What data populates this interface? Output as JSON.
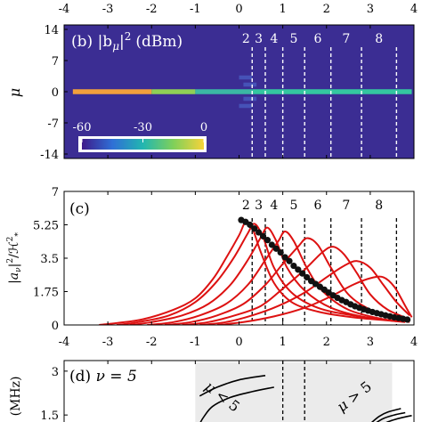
{
  "chart_data": [
    {
      "panel": "b",
      "type": "heatmap",
      "title": "(b) |b_μ|² (dBm)",
      "title_parts": {
        "tag": "(b)",
        "quantity": "|b",
        "sub": "μ",
        "sup": "2",
        "unit": "(dBm)"
      },
      "ylabel": "μ",
      "xlim": [
        -4,
        4
      ],
      "ylim": [
        -15,
        15
      ],
      "xticks": [
        "-4",
        "-3",
        "-2",
        "-1",
        "0",
        "1",
        "2",
        "3",
        "4"
      ],
      "yticks": [
        "14",
        "7",
        "0",
        "-7",
        "-14"
      ],
      "ytick_values": [
        14,
        7,
        0,
        -7,
        -14
      ],
      "background_color": "#3b2d93",
      "colorbar": {
        "ticks": [
          "-60",
          "-30",
          "0"
        ],
        "range_dBm": [
          -60,
          0
        ],
        "colors": [
          "#3e1b8a",
          "#2f6fd6",
          "#22b6b0",
          "#7fd05a",
          "#f7d33a"
        ]
      },
      "region_labels": [
        "2",
        "3",
        "4",
        "5",
        "6",
        "7",
        "8"
      ],
      "boundaries": [
        0.3,
        0.6,
        1.0,
        1.5,
        2.1,
        2.8,
        3.6
      ],
      "row_mu0": [
        {
          "x0": -3.8,
          "x1": -2.0,
          "color": "#f2a03c"
        },
        {
          "x0": -2.0,
          "x1": -1.0,
          "color": "#8fcf55"
        },
        {
          "x0": -1.0,
          "x1": 0.3,
          "color": "#3bb7a4"
        },
        {
          "x0": 0.3,
          "x1": 3.95,
          "color": "#34c7a0"
        }
      ]
    },
    {
      "panel": "c",
      "type": "line",
      "tag": "(c)",
      "ylabel": "|a_ν|²/ℋ²_*",
      "xlim": [
        -4,
        4
      ],
      "ylim": [
        0,
        7
      ],
      "xticks": [
        "-4",
        "-3",
        "-2",
        "-1",
        "0",
        "1",
        "2",
        "3",
        "4"
      ],
      "yticks": [
        "7",
        "5.25",
        "3.5",
        "1.75",
        "0"
      ],
      "ytick_values": [
        7,
        5.25,
        3.5,
        1.75,
        0
      ],
      "region_labels": [
        "2",
        "3",
        "4",
        "5",
        "6",
        "7",
        "8"
      ],
      "boundaries": [
        0.3,
        0.6,
        1.0,
        1.5,
        2.1,
        2.8,
        3.6
      ],
      "series_color": "#dd1111",
      "series": [
        {
          "values": [
            [
              -3.2,
              0.0
            ],
            [
              -2.8,
              0.1
            ],
            [
              -2.2,
              0.3
            ],
            [
              -1.5,
              0.8
            ],
            [
              -1.0,
              1.4
            ],
            [
              -0.6,
              2.4
            ],
            [
              -0.3,
              3.5
            ],
            [
              0.0,
              4.7
            ],
            [
              0.15,
              5.4
            ],
            [
              0.3,
              5.1
            ],
            [
              0.5,
              3.8
            ],
            [
              0.8,
              2.2
            ],
            [
              1.2,
              1.2
            ],
            [
              1.8,
              0.7
            ],
            [
              2.6,
              0.4
            ],
            [
              3.6,
              0.2
            ]
          ]
        },
        {
          "values": [
            [
              -2.8,
              0.0
            ],
            [
              -2.3,
              0.15
            ],
            [
              -1.6,
              0.5
            ],
            [
              -1.0,
              1.2
            ],
            [
              -0.5,
              2.3
            ],
            [
              -0.1,
              3.6
            ],
            [
              0.2,
              4.8
            ],
            [
              0.35,
              5.3
            ],
            [
              0.55,
              4.6
            ],
            [
              0.8,
              3.0
            ],
            [
              1.2,
              1.7
            ],
            [
              1.8,
              0.9
            ],
            [
              2.6,
              0.5
            ],
            [
              3.6,
              0.2
            ]
          ]
        },
        {
          "values": [
            [
              -2.5,
              0.0
            ],
            [
              -2.0,
              0.15
            ],
            [
              -1.3,
              0.5
            ],
            [
              -0.7,
              1.1
            ],
            [
              -0.2,
              2.1
            ],
            [
              0.2,
              3.4
            ],
            [
              0.5,
              4.6
            ],
            [
              0.65,
              5.1
            ],
            [
              0.85,
              4.4
            ],
            [
              1.1,
              3.0
            ],
            [
              1.5,
              1.8
            ],
            [
              2.1,
              0.9
            ],
            [
              2.9,
              0.4
            ],
            [
              3.7,
              0.2
            ]
          ]
        },
        {
          "values": [
            [
              -2.1,
              0.0
            ],
            [
              -1.5,
              0.15
            ],
            [
              -0.9,
              0.5
            ],
            [
              -0.3,
              1.1
            ],
            [
              0.2,
              2.1
            ],
            [
              0.6,
              3.4
            ],
            [
              0.9,
              4.4
            ],
            [
              1.05,
              4.9
            ],
            [
              1.25,
              4.4
            ],
            [
              1.55,
              3.0
            ],
            [
              1.9,
              1.8
            ],
            [
              2.5,
              0.8
            ],
            [
              3.3,
              0.3
            ],
            [
              3.8,
              0.15
            ]
          ]
        },
        {
          "values": [
            [
              -1.7,
              0.0
            ],
            [
              -1.1,
              0.15
            ],
            [
              -0.5,
              0.5
            ],
            [
              0.1,
              1.1
            ],
            [
              0.6,
              2.1
            ],
            [
              1.0,
              3.2
            ],
            [
              1.35,
              4.1
            ],
            [
              1.55,
              4.55
            ],
            [
              1.8,
              4.2
            ],
            [
              2.1,
              3.0
            ],
            [
              2.5,
              1.6
            ],
            [
              3.0,
              0.8
            ],
            [
              3.6,
              0.3
            ],
            [
              3.9,
              0.15
            ]
          ]
        },
        {
          "values": [
            [
              -1.3,
              0.0
            ],
            [
              -0.7,
              0.15
            ],
            [
              -0.1,
              0.5
            ],
            [
              0.5,
              1.0
            ],
            [
              1.0,
              1.9
            ],
            [
              1.5,
              2.9
            ],
            [
              1.9,
              3.8
            ],
            [
              2.15,
              4.1
            ],
            [
              2.4,
              3.7
            ],
            [
              2.7,
              2.7
            ],
            [
              3.0,
              1.6
            ],
            [
              3.4,
              0.8
            ],
            [
              3.9,
              0.3
            ]
          ]
        },
        {
          "values": [
            [
              -0.9,
              0.0
            ],
            [
              -0.3,
              0.15
            ],
            [
              0.3,
              0.5
            ],
            [
              0.9,
              1.0
            ],
            [
              1.5,
              1.7
            ],
            [
              2.0,
              2.5
            ],
            [
              2.4,
              3.1
            ],
            [
              2.7,
              3.35
            ],
            [
              3.0,
              3.0
            ],
            [
              3.3,
              2.1
            ],
            [
              3.6,
              1.2
            ],
            [
              3.9,
              0.5
            ]
          ]
        },
        {
          "values": [
            [
              -0.5,
              0.0
            ],
            [
              0.1,
              0.15
            ],
            [
              0.8,
              0.45
            ],
            [
              1.5,
              0.9
            ],
            [
              2.1,
              1.5
            ],
            [
              2.6,
              2.1
            ],
            [
              3.0,
              2.45
            ],
            [
              3.3,
              2.5
            ],
            [
              3.55,
              2.0
            ],
            [
              3.8,
              1.0
            ],
            [
              3.95,
              0.4
            ]
          ]
        }
      ],
      "points": {
        "color": "#111111",
        "values": [
          [
            0.05,
            5.5
          ],
          [
            0.15,
            5.4
          ],
          [
            0.25,
            5.25
          ],
          [
            0.35,
            5.05
          ],
          [
            0.45,
            4.85
          ],
          [
            0.55,
            4.65
          ],
          [
            0.65,
            4.45
          ],
          [
            0.75,
            4.2
          ],
          [
            0.85,
            4.0
          ],
          [
            0.95,
            3.8
          ],
          [
            1.05,
            3.55
          ],
          [
            1.15,
            3.35
          ],
          [
            1.25,
            3.1
          ],
          [
            1.35,
            2.9
          ],
          [
            1.45,
            2.7
          ],
          [
            1.55,
            2.5
          ],
          [
            1.65,
            2.3
          ],
          [
            1.75,
            2.15
          ],
          [
            1.85,
            2.0
          ],
          [
            1.95,
            1.85
          ],
          [
            2.05,
            1.7
          ],
          [
            2.15,
            1.55
          ],
          [
            2.25,
            1.42
          ],
          [
            2.35,
            1.3
          ],
          [
            2.45,
            1.2
          ],
          [
            2.55,
            1.08
          ],
          [
            2.65,
            0.98
          ],
          [
            2.75,
            0.9
          ],
          [
            2.85,
            0.82
          ],
          [
            2.95,
            0.75
          ],
          [
            3.05,
            0.68
          ],
          [
            3.15,
            0.62
          ],
          [
            3.25,
            0.56
          ],
          [
            3.35,
            0.5
          ],
          [
            3.45,
            0.45
          ],
          [
            3.55,
            0.4
          ],
          [
            3.65,
            0.36
          ],
          [
            3.75,
            0.32
          ],
          [
            3.85,
            0.28
          ]
        ]
      }
    },
    {
      "panel": "d",
      "type": "line",
      "title": "(d) ν = 5",
      "title_parts": {
        "tag": "(d)",
        "label": "ν = 5"
      },
      "ylabel": "(MHz)",
      "ylim": [
        1.2,
        3.3
      ],
      "yticks": [
        "3",
        "1.5"
      ],
      "ytick_values": [
        3,
        1.5
      ],
      "boundaries": [
        1.0,
        1.5
      ],
      "shaded_xrange": [
        -1.0,
        3.5
      ],
      "shade_color": "#ebebeb",
      "annotations": [
        {
          "text": "μ < 5",
          "prefix": "μ",
          "rest": "< 5",
          "x": -0.45,
          "y": 2.0
        },
        {
          "text": "μ > 5",
          "prefix": "μ",
          "rest": "> 5",
          "x": 2.7,
          "y": 2.0
        }
      ],
      "series": [
        {
          "values": [
            [
              -0.9,
              2.15
            ],
            [
              -0.5,
              2.45
            ],
            [
              0.0,
              2.7
            ],
            [
              0.6,
              2.85
            ]
          ]
        },
        {
          "values": [
            [
              -0.9,
              1.2
            ],
            [
              -0.8,
              1.45
            ],
            [
              -0.6,
              1.8
            ],
            [
              -0.2,
              2.1
            ],
            [
              0.3,
              2.3
            ],
            [
              0.8,
              2.45
            ]
          ]
        },
        {
          "values": [
            [
              3.0,
              1.2
            ],
            [
              3.2,
              1.45
            ],
            [
              3.4,
              1.6
            ],
            [
              3.7,
              1.72
            ]
          ]
        },
        {
          "values": [
            [
              3.1,
              1.2
            ],
            [
              3.3,
              1.38
            ],
            [
              3.55,
              1.5
            ],
            [
              3.8,
              1.58
            ]
          ]
        },
        {
          "values": [
            [
              3.3,
              1.2
            ],
            [
              3.5,
              1.32
            ],
            [
              3.75,
              1.42
            ],
            [
              3.95,
              1.48
            ]
          ]
        }
      ]
    }
  ]
}
